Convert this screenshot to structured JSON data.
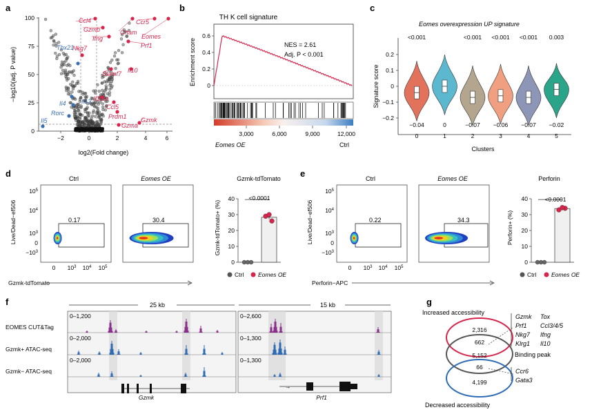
{
  "panels": {
    "a": {
      "label": "a",
      "ylabel": "−log10(adj. P value)",
      "xlabel": "log2(Fold change)",
      "yticks": [
        "0",
        "25",
        "50",
        "75",
        "100"
      ],
      "xticks": [
        "−2",
        "0",
        "2",
        "4",
        "6"
      ],
      "red_genes": [
        "Ccl4",
        "Gzmb",
        "Ifng",
        "Crtam",
        "Ccr5",
        "Eomes",
        "Prf1",
        "Nkg7",
        "Slamf7",
        "Il10",
        "Il10ra",
        "Ccl5",
        "Prdm1",
        "Gzmk",
        "Gzma"
      ],
      "blue_genes": [
        "Tbx21",
        "Il4",
        "Il13",
        "Rorc",
        "Il5"
      ]
    },
    "b": {
      "label": "b",
      "title": "TH K cell signature",
      "ylabel": "Enrichment score",
      "yticks": [
        "0",
        "0.2",
        "0.4",
        "0.6"
      ],
      "nes": "NES = 2.61",
      "padj": "Adj. P < 0.001",
      "xticks": [
        "3,000",
        "6,000",
        "9,000",
        "12,000"
      ],
      "left_label": "Eomes OE",
      "right_label": "Ctrl"
    },
    "c": {
      "label": "c",
      "title": "Eomes overexpression UP signature",
      "ylabel": "Signature score",
      "xlabel": "Clusters",
      "yticks": [
        "−0.2",
        "−0.1",
        "0",
        "0.1",
        "0.2"
      ],
      "clusters": [
        "0",
        "1",
        "2",
        "3",
        "4",
        "5"
      ],
      "pvals": [
        "<0.001",
        "",
        "<0.001",
        "<0.001",
        "<0.001",
        "0.003"
      ],
      "medians": [
        "−0.04",
        "0",
        "−0.07",
        "−0.06",
        "−0.07",
        "−0.02"
      ],
      "colors": [
        "#e2725b",
        "#5bb8cf",
        "#b3a58e",
        "#f0a080",
        "#8e96b8",
        "#2aa58a"
      ]
    },
    "d": {
      "label": "d",
      "ctrl_title": "Ctrl",
      "oe_title": "Eomes OE",
      "ctrl_pct": "0.17",
      "oe_pct": "30.4",
      "ylabel": "Live/Dead−ef506",
      "xlabel": "Gzmk-tdTomato",
      "bar_title": "Gzmk-tdTomato",
      "bar_ylabel": "Gzmk-tdTomato+ (%)",
      "bar_yticks": [
        "0",
        "10",
        "20",
        "30",
        "40"
      ],
      "pval": "<0.0001",
      "legend_ctrl": "Ctrl",
      "legend_oe": "Eomes OE",
      "ctrl_values": [
        0,
        0,
        0
      ],
      "oe_values": [
        29,
        26,
        30
      ]
    },
    "e": {
      "label": "e",
      "ctrl_title": "Ctrl",
      "oe_title": "Eomes OE",
      "ctrl_pct": "0.22",
      "oe_pct": "34.3",
      "ylabel": "Live/Dead−ef506",
      "xlabel": "Perforin−APC",
      "bar_title": "Perforin",
      "bar_ylabel": "Perforin+ (%)",
      "bar_yticks": [
        "0",
        "10",
        "20",
        "30",
        "40"
      ],
      "pval": "<0.0001",
      "legend_ctrl": "Ctrl",
      "legend_oe": "Eomes OE",
      "ctrl_values": [
        0,
        0,
        0
      ],
      "oe_values": [
        33,
        34,
        34.5
      ]
    },
    "f": {
      "label": "f",
      "left_scale": "25 kb",
      "right_scale": "15 kb",
      "tracks": [
        "EOMES CUT&Tag",
        "Gzmk+ ATAC-seq",
        "Gzmk− ATAC-seq"
      ],
      "left_ranges": [
        "0–1,200",
        "0–2,000",
        "0–2,000"
      ],
      "right_ranges": [
        "0–2,600",
        "0–1,300",
        "0–1,300"
      ],
      "left_gene": "Gzmk",
      "right_gene": "Prf1"
    },
    "g": {
      "label": "g",
      "top_title": "Increased accessibility",
      "bottom_title": "Decreased accessibility",
      "top_only": "2,316",
      "top_overlap": "662",
      "middle_only": "5,152",
      "bottom_overlap": "66",
      "bottom_only": "4,199",
      "middle_label": "Binding peak",
      "up_genes_col1": [
        "Gzmk",
        "Prf1",
        "Nkg7",
        "Klrg1"
      ],
      "up_genes_col2": [
        "Tox",
        "Ccl3/4/5",
        "Ifng",
        "Il10"
      ],
      "down_genes": [
        "Ccr6",
        "Gata3"
      ]
    }
  },
  "colors": {
    "red": "#d6244b",
    "blue": "#3a6fb5",
    "purple": "#8b2d8b",
    "track_blue": "#2f6bb3",
    "gray_band": "#dcdcdc"
  }
}
